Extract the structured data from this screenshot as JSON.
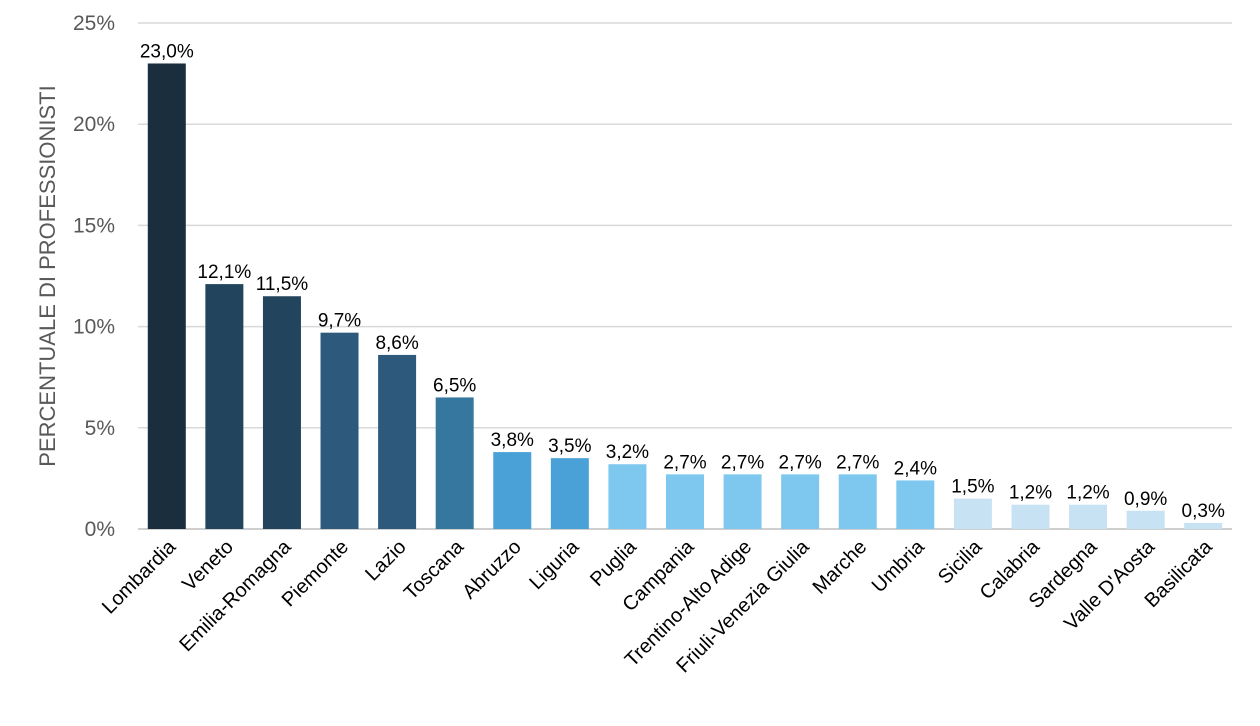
{
  "chart_data": {
    "type": "bar",
    "title": "",
    "xlabel": "",
    "ylabel": "PERCENTUALE DI PROFESSIONISTI",
    "ylim": [
      0,
      25
    ],
    "yticks": [
      "0%",
      "5%",
      "10%",
      "15%",
      "20%",
      "25%"
    ],
    "ytick_values": [
      0,
      5,
      10,
      15,
      20,
      25
    ],
    "grid": true,
    "categories": [
      "Lombardia",
      "Veneto",
      "Emilia-Romagna",
      "Piemonte",
      "Lazio",
      "Toscana",
      "Abruzzo",
      "Liguria",
      "Puglia",
      "Campania",
      "Trentino-Alto Adige",
      "Friuli-Venezia Giulia",
      "Marche",
      "Umbria",
      "Sicilia",
      "Calabria",
      "Sardegna",
      "Valle D'Aosta",
      "Basilicata"
    ],
    "values": [
      23.0,
      12.1,
      11.5,
      9.7,
      8.6,
      6.5,
      3.8,
      3.5,
      3.2,
      2.7,
      2.7,
      2.7,
      2.7,
      2.4,
      1.5,
      1.2,
      1.2,
      0.9,
      0.3
    ],
    "data_labels": [
      "23,0%",
      "12,1%",
      "11,5%",
      "9,7%",
      "8,6%",
      "6,5%",
      "3,8%",
      "3,5%",
      "3,2%",
      "2,7%",
      "2,7%",
      "2,7%",
      "2,7%",
      "2,4%",
      "1,5%",
      "1,2%",
      "1,2%",
      "0,9%",
      "0,3%"
    ],
    "colors": [
      "#1b2e3d",
      "#23445d",
      "#23445d",
      "#2d5a7c",
      "#2d5a7c",
      "#35779f",
      "#4aa1d8",
      "#4aa1d8",
      "#7ec8ef",
      "#7ec8ef",
      "#7ec8ef",
      "#7ec8ef",
      "#7ec8ef",
      "#7ec8ef",
      "#c6e2f3",
      "#c6e2f3",
      "#c6e2f3",
      "#c6e2f3",
      "#c6e2f3"
    ]
  }
}
